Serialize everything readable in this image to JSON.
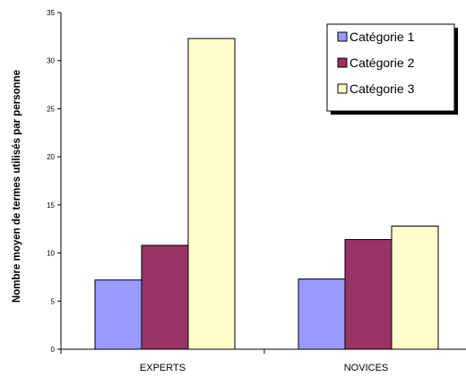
{
  "chart_data": {
    "type": "bar",
    "categories": [
      "EXPERTS",
      "NOVICES"
    ],
    "series": [
      {
        "name": "Catégorie 1",
        "values": [
          7.2,
          7.3
        ],
        "color": "#9999ff"
      },
      {
        "name": "Catégorie 2",
        "values": [
          10.8,
          11.4
        ],
        "color": "#993366"
      },
      {
        "name": "Catégorie 3",
        "values": [
          32.3,
          12.8
        ],
        "color": "#ffffcc"
      }
    ],
    "title": "",
    "xlabel": "",
    "ylabel": "Nombre moyen de termes utilisés par personne",
    "ylim": [
      0,
      35
    ],
    "yticks": [
      "0",
      "5",
      "10",
      "15",
      "20",
      "25",
      "30",
      "35"
    ],
    "grid": false,
    "legend_position": "top-right"
  }
}
